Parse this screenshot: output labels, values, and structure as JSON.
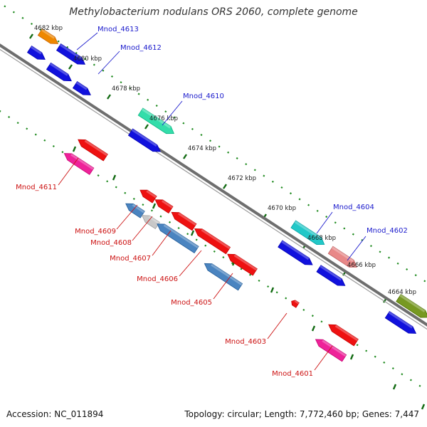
{
  "header": {
    "title": "Methylobacterium nodulans ORS 2060, complete genome"
  },
  "footer": {
    "accession": "Accession: NC_011894",
    "summary": "Topology: circular; Length: 7,772,460 bp; Genes: 7,447"
  },
  "colors": {
    "forward_label": "#1a1acc",
    "reverse_label": "#cc1111",
    "tick": "#1e8a1e",
    "backbone": "#6e6e6e"
  },
  "ticks": [
    "4682 kbp",
    "4680 kbp",
    "4678 kbp",
    "4676 kbp",
    "4674 kbp",
    "4672 kbp",
    "4670 kbp",
    "4668 kbp",
    "4666 kbp",
    "4664 kbp"
  ],
  "genes": [
    {
      "label": "Mnod_4613",
      "strand": "forward"
    },
    {
      "label": "Mnod_4612",
      "strand": "forward"
    },
    {
      "label": "Mnod_4610",
      "strand": "forward"
    },
    {
      "label": "Mnod_4611",
      "strand": "reverse"
    },
    {
      "label": "Mnod_4609",
      "strand": "reverse"
    },
    {
      "label": "Mnod_4608",
      "strand": "reverse"
    },
    {
      "label": "Mnod_4607",
      "strand": "reverse"
    },
    {
      "label": "Mnod_4606",
      "strand": "reverse"
    },
    {
      "label": "Mnod_4605",
      "strand": "reverse"
    },
    {
      "label": "Mnod_4604",
      "strand": "forward"
    },
    {
      "label": "Mnod_4602",
      "strand": "forward"
    },
    {
      "label": "Mnod_4603",
      "strand": "reverse"
    },
    {
      "label": "Mnod_4601",
      "strand": "reverse"
    }
  ]
}
